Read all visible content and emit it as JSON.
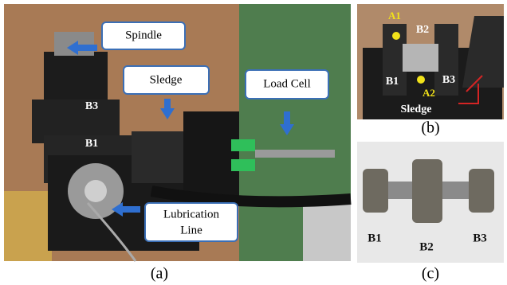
{
  "panel_a": {
    "caption": "(a)",
    "labels": {
      "spindle": "Spindle",
      "sledge": "Sledge",
      "load_cell": "Load Cell",
      "lubrication_line": [
        "Lubrication",
        "Line"
      ],
      "b3": "B3",
      "b1": "B1"
    }
  },
  "panel_b": {
    "caption": "(b)",
    "labels": {
      "a1": "A1",
      "b2": "B2",
      "b1": "B1",
      "a2": "A2",
      "b3": "B3",
      "sledge": "Sledge"
    }
  },
  "panel_c": {
    "caption": "(c)",
    "labels": {
      "b1": "B1",
      "b2": "B2",
      "b3": "B3"
    }
  }
}
